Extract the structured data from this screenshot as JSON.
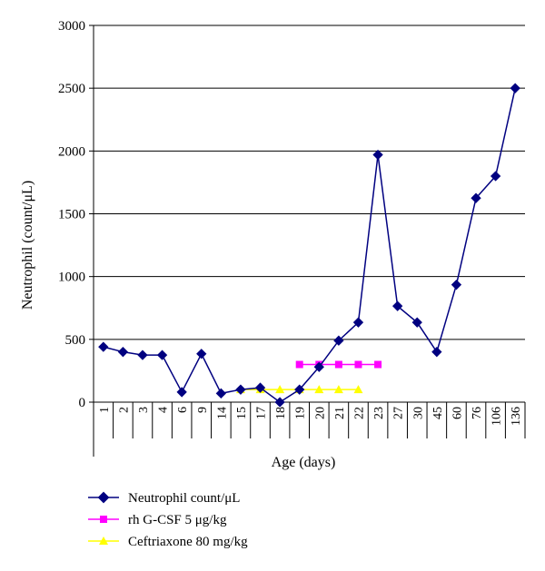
{
  "chart_data": {
    "type": "line",
    "ylabel": "Neutrophil (count/μL)",
    "xlabel": "Age (days)",
    "ylim": [
      0,
      3000
    ],
    "yticks": [
      0,
      500,
      1000,
      1500,
      2000,
      2500,
      3000
    ],
    "grid": "horizontal",
    "legend_position": "bottom-left",
    "categories": [
      "1",
      "2",
      "3",
      "4",
      "6",
      "9",
      "14",
      "15",
      "17",
      "18",
      "19",
      "20",
      "21",
      "22",
      "23",
      "27",
      "30",
      "45",
      "60",
      "76",
      "106",
      "136"
    ],
    "series": [
      {
        "name": "Neutrophil count/μL",
        "color": "#000080",
        "marker": "diamond",
        "values": [
          440,
          400,
          375,
          375,
          80,
          385,
          70,
          100,
          115,
          0,
          100,
          280,
          490,
          635,
          1970,
          765,
          635,
          400,
          935,
          1625,
          1800,
          2500
        ]
      },
      {
        "name": "rh G-CSF 5 μg/kg",
        "color": "#ff00ff",
        "marker": "square",
        "values": [
          null,
          null,
          null,
          null,
          null,
          null,
          null,
          null,
          null,
          null,
          300,
          300,
          300,
          300,
          300,
          null,
          null,
          null,
          null,
          null,
          null,
          null
        ]
      },
      {
        "name": "Ceftriaxone 80 mg/kg",
        "color": "#ffff00",
        "marker": "triangle",
        "values": [
          null,
          null,
          null,
          null,
          null,
          null,
          null,
          100,
          100,
          100,
          100,
          100,
          100,
          100,
          null,
          null,
          null,
          null,
          null,
          null,
          null,
          null
        ]
      }
    ]
  }
}
